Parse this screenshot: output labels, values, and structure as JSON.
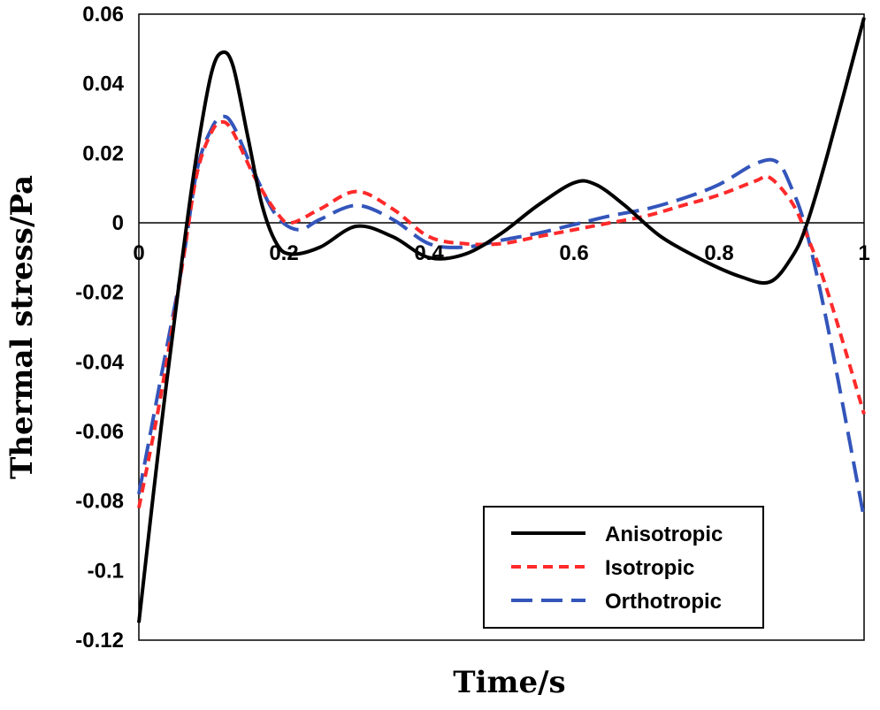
{
  "chart_data": {
    "type": "line",
    "title": "",
    "xlabel": "Time/s",
    "ylabel": "Thermal stress/Pa",
    "xlim": [
      0,
      1
    ],
    "ylim": [
      -0.12,
      0.06
    ],
    "x_ticks": [
      {
        "value": 0,
        "label": "0"
      },
      {
        "value": 0.2,
        "label": "0.2"
      },
      {
        "value": 0.4,
        "label": "0.4"
      },
      {
        "value": 0.6,
        "label": "0.6"
      },
      {
        "value": 0.8,
        "label": "0.8"
      },
      {
        "value": 1,
        "label": "1"
      }
    ],
    "y_ticks": [
      {
        "value": 0.06,
        "label": "0.06"
      },
      {
        "value": 0.04,
        "label": "0.04"
      },
      {
        "value": 0.02,
        "label": "0.02"
      },
      {
        "value": 0,
        "label": "0"
      },
      {
        "value": -0.02,
        "label": "-0.02"
      },
      {
        "value": -0.04,
        "label": "-0.04"
      },
      {
        "value": -0.06,
        "label": "-0.06"
      },
      {
        "value": -0.08,
        "label": "-0.08"
      },
      {
        "value": -0.1,
        "label": "-0.1"
      },
      {
        "value": -0.12,
        "label": "-0.12"
      }
    ],
    "grid": false,
    "legend_position": "bottom-right",
    "series": [
      {
        "name": "Anisotropic",
        "color": "#000000",
        "dash": "solid",
        "points": [
          [
            0,
            -0.115
          ],
          [
            0.03,
            -0.06
          ],
          [
            0.06,
            -0.01
          ],
          [
            0.08,
            0.02
          ],
          [
            0.1,
            0.043
          ],
          [
            0.115,
            0.049
          ],
          [
            0.13,
            0.045
          ],
          [
            0.15,
            0.025
          ],
          [
            0.17,
            0.005
          ],
          [
            0.19,
            -0.006
          ],
          [
            0.21,
            -0.009
          ],
          [
            0.25,
            -0.007
          ],
          [
            0.3,
            -0.001
          ],
          [
            0.35,
            -0.004
          ],
          [
            0.4,
            -0.01
          ],
          [
            0.45,
            -0.009
          ],
          [
            0.5,
            -0.003
          ],
          [
            0.55,
            0.005
          ],
          [
            0.6,
            0.0115
          ],
          [
            0.63,
            0.011
          ],
          [
            0.67,
            0.005
          ],
          [
            0.72,
            -0.004
          ],
          [
            0.78,
            -0.011
          ],
          [
            0.83,
            -0.0155
          ],
          [
            0.87,
            -0.017
          ],
          [
            0.9,
            -0.01
          ],
          [
            0.92,
            -0.001
          ],
          [
            0.95,
            0.02
          ],
          [
            1.0,
            0.059
          ]
        ]
      },
      {
        "name": "Isotropic",
        "color": "#ff2a2a",
        "dash": "short",
        "points": [
          [
            0,
            -0.082
          ],
          [
            0.03,
            -0.05
          ],
          [
            0.06,
            -0.012
          ],
          [
            0.08,
            0.014
          ],
          [
            0.1,
            0.026
          ],
          [
            0.115,
            0.029
          ],
          [
            0.13,
            0.026
          ],
          [
            0.16,
            0.013
          ],
          [
            0.19,
            0.003
          ],
          [
            0.21,
            0.0
          ],
          [
            0.25,
            0.004
          ],
          [
            0.3,
            0.009
          ],
          [
            0.35,
            0.004
          ],
          [
            0.4,
            -0.004
          ],
          [
            0.45,
            -0.006
          ],
          [
            0.5,
            -0.006
          ],
          [
            0.55,
            -0.004
          ],
          [
            0.6,
            -0.002
          ],
          [
            0.65,
            0.0
          ],
          [
            0.7,
            0.002
          ],
          [
            0.75,
            0.005
          ],
          [
            0.8,
            0.008
          ],
          [
            0.85,
            0.012
          ],
          [
            0.87,
            0.013
          ],
          [
            0.9,
            0.006
          ],
          [
            0.92,
            -0.003
          ],
          [
            0.95,
            -0.02
          ],
          [
            1.0,
            -0.055
          ]
        ]
      },
      {
        "name": "Orthotropic",
        "color": "#3355bb",
        "dash": "long",
        "points": [
          [
            0,
            -0.078
          ],
          [
            0.03,
            -0.045
          ],
          [
            0.06,
            -0.012
          ],
          [
            0.08,
            0.015
          ],
          [
            0.1,
            0.027
          ],
          [
            0.115,
            0.0305
          ],
          [
            0.13,
            0.028
          ],
          [
            0.16,
            0.014
          ],
          [
            0.19,
            0.002
          ],
          [
            0.22,
            -0.002
          ],
          [
            0.25,
            0.001
          ],
          [
            0.3,
            0.005
          ],
          [
            0.35,
            0.001
          ],
          [
            0.4,
            -0.006
          ],
          [
            0.45,
            -0.007
          ],
          [
            0.5,
            -0.005
          ],
          [
            0.55,
            -0.003
          ],
          [
            0.6,
            -0.0005
          ],
          [
            0.65,
            0.002
          ],
          [
            0.7,
            0.004
          ],
          [
            0.75,
            0.007
          ],
          [
            0.8,
            0.011
          ],
          [
            0.85,
            0.017
          ],
          [
            0.88,
            0.0175
          ],
          [
            0.9,
            0.01
          ],
          [
            0.92,
            -0.002
          ],
          [
            0.95,
            -0.03
          ],
          [
            1.0,
            -0.085
          ]
        ]
      }
    ]
  }
}
